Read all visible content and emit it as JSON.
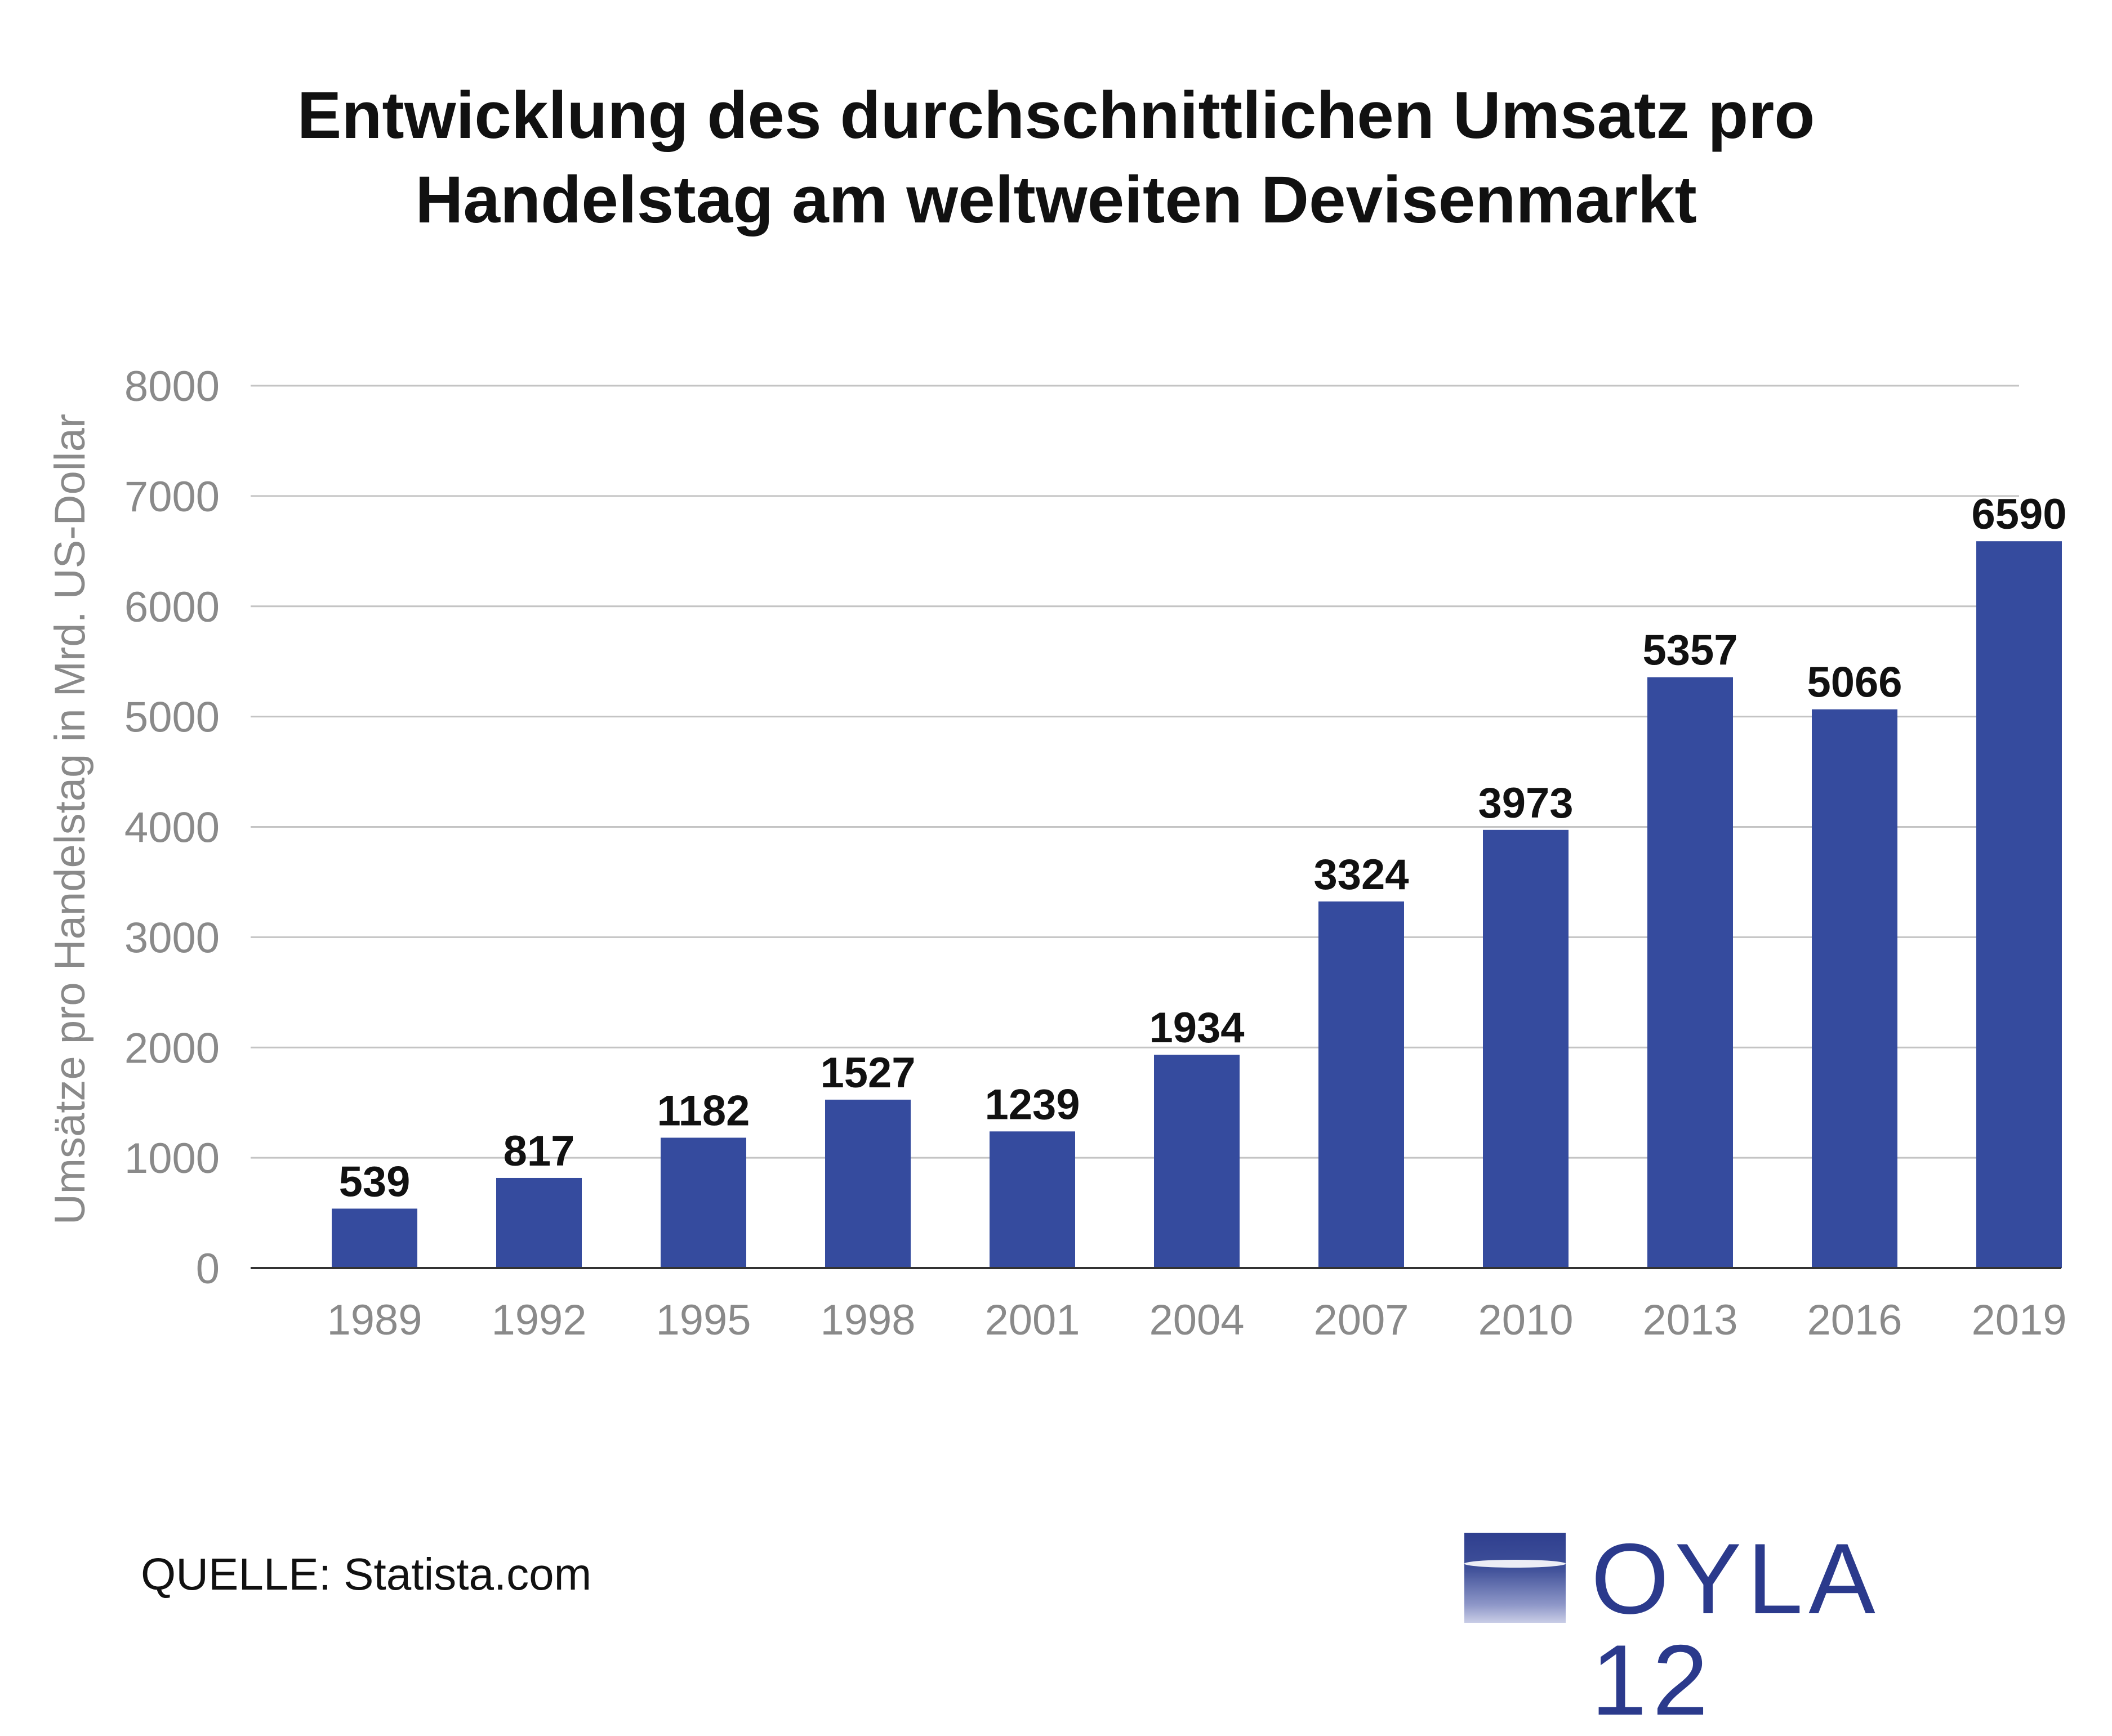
{
  "chart_data": {
    "type": "bar",
    "title_line1": "Entwicklung des durchschnittlichen Umsatz pro",
    "title_line2": "Handelstag am weltweiten Devisenmarkt",
    "xlabel": "",
    "ylabel": "Umsätze pro Handelstag in Mrd. US-Dollar",
    "ylim": [
      0,
      8000
    ],
    "yticks": [
      "0",
      "1000",
      "2000",
      "3000",
      "4000",
      "5000",
      "6000",
      "7000",
      "8000"
    ],
    "grid": true,
    "categories": [
      "1989",
      "1992",
      "1995",
      "1998",
      "2001",
      "2004",
      "2007",
      "2010",
      "2013",
      "2016",
      "2019"
    ],
    "values": [
      539,
      817,
      1182,
      1527,
      1239,
      1934,
      3324,
      3973,
      5357,
      5066,
      6590
    ],
    "bar_color": "#354b9e"
  },
  "source": "QUELLE: Statista.com",
  "logo": {
    "text": "OYLA 12",
    "color": "#2b3a8c"
  }
}
